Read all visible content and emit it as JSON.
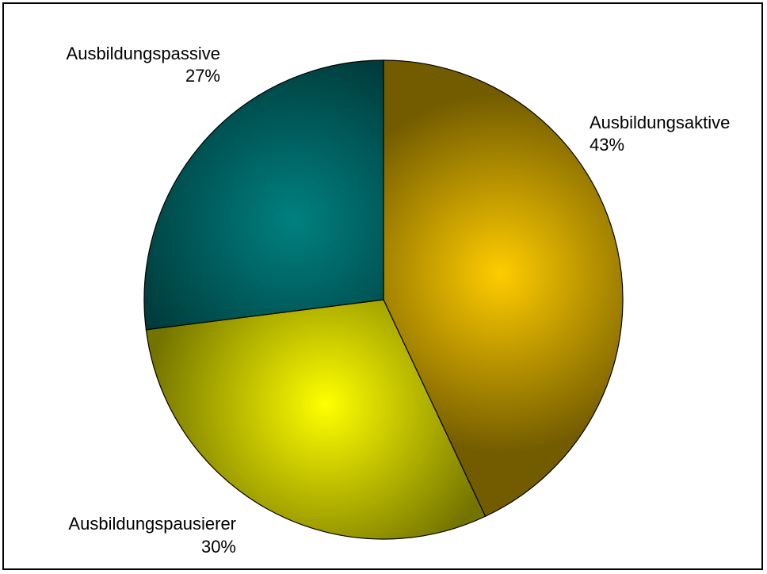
{
  "chart_data": {
    "type": "pie",
    "title": "",
    "slices": [
      {
        "label": "Ausbildungsaktive",
        "value": 43,
        "value_label": "43%",
        "color": "#ffcc00"
      },
      {
        "label": "Ausbildungspausierer",
        "value": 30,
        "value_label": "30%",
        "color": "#ffff00"
      },
      {
        "label": "Ausbildungspassive",
        "value": 27,
        "value_label": "27%",
        "color": "#008080"
      }
    ],
    "start_angle_deg": 0,
    "direction": "clockwise",
    "legend": "none",
    "data_labels": "outside"
  }
}
